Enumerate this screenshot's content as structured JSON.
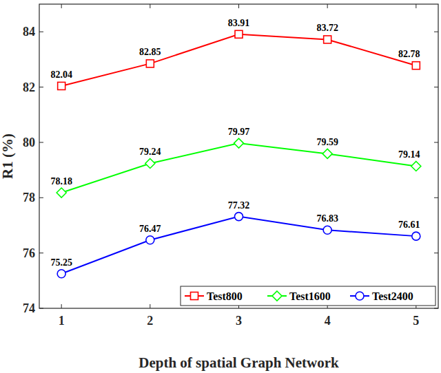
{
  "chart_data": {
    "type": "line",
    "x_label": "Depth of spatial Graph Network",
    "y_label": "R1 (%)",
    "x": [
      1,
      2,
      3,
      4,
      5
    ],
    "xlim": [
      0.75,
      5.25
    ],
    "xticks": [
      1,
      2,
      3,
      4,
      5
    ],
    "ylim": [
      74,
      85
    ],
    "yticks": [
      74,
      76,
      78,
      80,
      82,
      84
    ],
    "grid": false,
    "legend": "lower right",
    "data_labels": true,
    "series": [
      {
        "name": "Test800",
        "color": "#ff0000",
        "marker": "square",
        "values": [
          82.04,
          82.85,
          83.91,
          83.72,
          82.78
        ]
      },
      {
        "name": "Test1600",
        "color": "#00ff00",
        "marker": "diamond",
        "values": [
          78.18,
          79.24,
          79.97,
          79.59,
          79.14
        ]
      },
      {
        "name": "Test2400",
        "color": "#0000ff",
        "marker": "circle",
        "values": [
          75.25,
          76.47,
          77.32,
          76.83,
          76.61
        ]
      }
    ]
  }
}
